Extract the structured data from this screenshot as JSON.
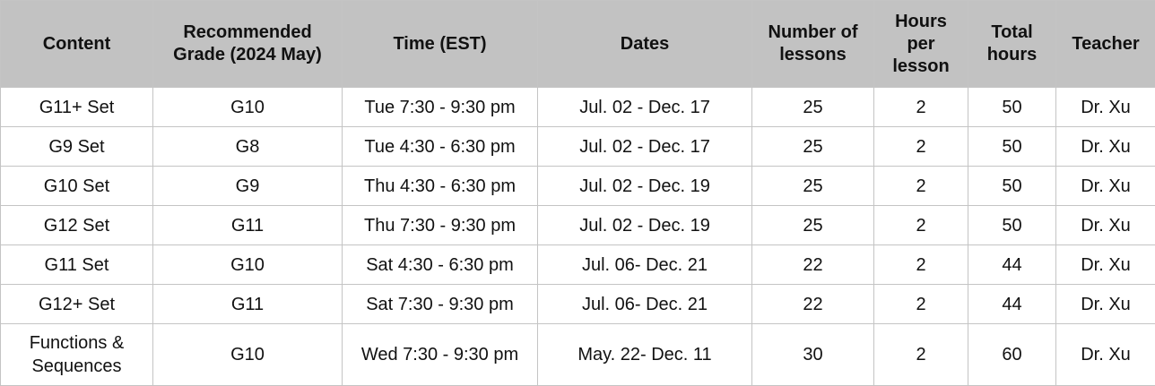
{
  "table": {
    "headers": [
      "Content",
      "Recommended Grade (2024 May)",
      "Time (EST)",
      "Dates",
      "Number of lessons",
      "Hours per lesson",
      "Total hours",
      "Teacher"
    ],
    "rows": [
      [
        "G11+ Set",
        "G10",
        "Tue 7:30 - 9:30 pm",
        "Jul. 02 - Dec. 17",
        "25",
        "2",
        "50",
        "Dr. Xu"
      ],
      [
        "G9 Set",
        "G8",
        "Tue 4:30 - 6:30 pm",
        "Jul. 02 - Dec. 17",
        "25",
        "2",
        "50",
        "Dr. Xu"
      ],
      [
        "G10 Set",
        "G9",
        "Thu 4:30 - 6:30 pm",
        "Jul. 02 - Dec. 19",
        "25",
        "2",
        "50",
        "Dr. Xu"
      ],
      [
        "G12 Set",
        "G11",
        "Thu 7:30 - 9:30 pm",
        "Jul. 02 - Dec. 19",
        "25",
        "2",
        "50",
        "Dr. Xu"
      ],
      [
        "G11 Set",
        "G10",
        "Sat 4:30 - 6:30 pm",
        "Jul. 06- Dec. 21",
        "22",
        "2",
        "44",
        "Dr. Xu"
      ],
      [
        "G12+ Set",
        "G11",
        "Sat 7:30 - 9:30 pm",
        "Jul. 06- Dec. 21",
        "22",
        "2",
        "44",
        "Dr. Xu"
      ],
      [
        "Functions & Sequences",
        "G10",
        "Wed 7:30 - 9:30 pm",
        "May. 22- Dec. 11",
        "30",
        "2",
        "60",
        "Dr. Xu"
      ]
    ]
  }
}
